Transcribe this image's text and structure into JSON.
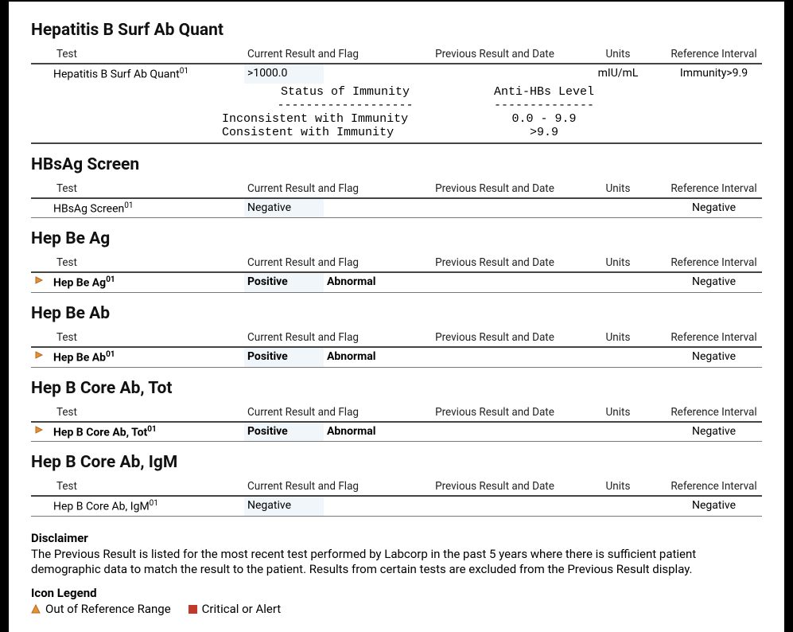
{
  "colors": {
    "marker_fill": "#e69138",
    "marker_stroke": "#b46a1b",
    "critical_fill": "#c0392b",
    "result_bg": "#f0f6fa",
    "header_rule": "#444444",
    "row_rule": "#777777"
  },
  "headers": {
    "test": "Test",
    "result": "Current Result and Flag",
    "prev": "Previous Result and Date",
    "units": "Units",
    "ref": "Reference Interval"
  },
  "sections": [
    {
      "title": "Hepatitis B Surf Ab Quant",
      "rows": [
        {
          "flag": false,
          "bold": false,
          "test": "Hepatitis B Surf Ab Quant",
          "sup": "01",
          "result": ">1000.0",
          "abn": "",
          "prev": "",
          "units": "mIU/mL",
          "ref": "Immunity>9.9",
          "noborder": true
        }
      ],
      "interp": {
        "h1": "Status of Immunity",
        "h2": "Anti-HBs Level",
        "d1": "-------------------",
        "d2": "--------------",
        "r1a": "Inconsistent with Immunity",
        "r1b": "0.0 - 9.9",
        "r2a": "Consistent with Immunity",
        "r2b": ">9.9"
      }
    },
    {
      "title": "HBsAg Screen",
      "rows": [
        {
          "flag": false,
          "bold": false,
          "test": "HBsAg Screen",
          "sup": "01",
          "result": "Negative",
          "abn": "",
          "prev": "",
          "units": "",
          "ref": "Negative"
        }
      ]
    },
    {
      "title": "Hep Be Ag",
      "rows": [
        {
          "flag": true,
          "bold": true,
          "test": "Hep Be Ag",
          "sup": "01",
          "result": "Positive",
          "abn": "Abnormal",
          "prev": "",
          "units": "",
          "ref": "Negative"
        }
      ]
    },
    {
      "title": "Hep Be Ab",
      "rows": [
        {
          "flag": true,
          "bold": true,
          "test": "Hep Be Ab",
          "sup": "01",
          "result": "Positive",
          "abn": "Abnormal",
          "prev": "",
          "units": "",
          "ref": "Negative"
        }
      ]
    },
    {
      "title": "Hep B Core Ab, Tot",
      "rows": [
        {
          "flag": true,
          "bold": true,
          "test": "Hep B Core Ab, Tot",
          "sup": "01",
          "result": "Positive",
          "abn": "Abnormal",
          "prev": "",
          "units": "",
          "ref": "Negative"
        }
      ]
    },
    {
      "title": "Hep B Core Ab, IgM",
      "rows": [
        {
          "flag": false,
          "bold": false,
          "test": "Hep B Core Ab, IgM",
          "sup": "01",
          "result": "Negative",
          "abn": "",
          "prev": "",
          "units": "",
          "ref": "Negative"
        }
      ]
    }
  ],
  "disclaimer": {
    "heading": "Disclaimer",
    "body": "The Previous Result is listed for the most recent test performed by Labcorp in the past 5 years where there is sufficient patient demographic data to match the result to the patient. Results from certain tests are excluded from the Previous Result display."
  },
  "legend": {
    "heading": "Icon Legend",
    "out_of_range": "Out of Reference Range",
    "critical": "Critical or Alert"
  }
}
